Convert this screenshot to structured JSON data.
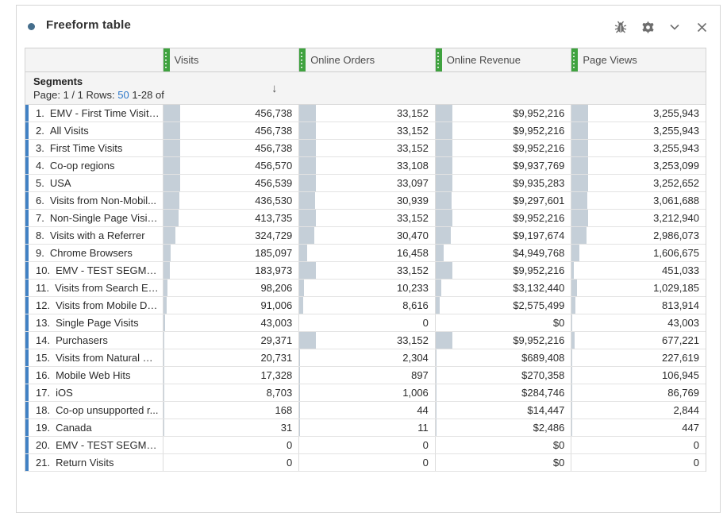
{
  "panel": {
    "title": "Freeform table",
    "toolbar": {
      "bug_icon": "debug-bug",
      "gear_icon": "settings-gear",
      "chevron_icon": "collapse-chevron-down",
      "close_icon": "close-x"
    }
  },
  "table": {
    "columns": [
      "Visits",
      "Online Orders",
      "Online Revenue",
      "Page Views"
    ],
    "row_header": {
      "title": "Segments",
      "page_label": "Page: 1 / 1 Rows:",
      "rows_value": "50",
      "range_label": "1-28 of",
      "sort_arrow": "↓",
      "sorted_column": "Visits",
      "sort_direction": "descending"
    },
    "rows": [
      {
        "index": "1.",
        "label": "EMV - First Time Visits...",
        "visits": "456,738",
        "online_orders": "33,152",
        "online_revenue": "$9,952,216",
        "page_views": "3,255,943"
      },
      {
        "index": "2.",
        "label": "All Visits",
        "visits": "456,738",
        "online_orders": "33,152",
        "online_revenue": "$9,952,216",
        "page_views": "3,255,943"
      },
      {
        "index": "3.",
        "label": "First Time Visits",
        "visits": "456,738",
        "online_orders": "33,152",
        "online_revenue": "$9,952,216",
        "page_views": "3,255,943"
      },
      {
        "index": "4.",
        "label": "Co-op regions",
        "visits": "456,570",
        "online_orders": "33,108",
        "online_revenue": "$9,937,769",
        "page_views": "3,253,099"
      },
      {
        "index": "5.",
        "label": "USA",
        "visits": "456,539",
        "online_orders": "33,097",
        "online_revenue": "$9,935,283",
        "page_views": "3,252,652"
      },
      {
        "index": "6.",
        "label": "Visits from Non-Mobil...",
        "visits": "436,530",
        "online_orders": "30,939",
        "online_revenue": "$9,297,601",
        "page_views": "3,061,688"
      },
      {
        "index": "7.",
        "label": "Non-Single Page Visit (...",
        "visits": "413,735",
        "online_orders": "33,152",
        "online_revenue": "$9,952,216",
        "page_views": "3,212,940"
      },
      {
        "index": "8.",
        "label": "Visits with a Referrer",
        "visits": "324,729",
        "online_orders": "30,470",
        "online_revenue": "$9,197,674",
        "page_views": "2,986,073"
      },
      {
        "index": "9.",
        "label": "Chrome Browsers",
        "visits": "185,097",
        "online_orders": "16,458",
        "online_revenue": "$4,949,768",
        "page_views": "1,606,675"
      },
      {
        "index": "10.",
        "label": "EMV - TEST SEGMEN...",
        "visits": "183,973",
        "online_orders": "33,152",
        "online_revenue": "$9,952,216",
        "page_views": "451,033"
      },
      {
        "index": "11.",
        "label": "Visits from Search En...",
        "visits": "98,206",
        "online_orders": "10,233",
        "online_revenue": "$3,132,440",
        "page_views": "1,029,185"
      },
      {
        "index": "12.",
        "label": "Visits from Mobile De...",
        "visits": "91,006",
        "online_orders": "8,616",
        "online_revenue": "$2,575,499",
        "page_views": "813,914"
      },
      {
        "index": "13.",
        "label": "Single Page Visits",
        "visits": "43,003",
        "online_orders": "0",
        "online_revenue": "$0",
        "page_views": "43,003"
      },
      {
        "index": "14.",
        "label": "Purchasers",
        "visits": "29,371",
        "online_orders": "33,152",
        "online_revenue": "$9,952,216",
        "page_views": "677,221"
      },
      {
        "index": "15.",
        "label": "Visits from Natural Se...",
        "visits": "20,731",
        "online_orders": "2,304",
        "online_revenue": "$689,408",
        "page_views": "227,619"
      },
      {
        "index": "16.",
        "label": "Mobile Web Hits",
        "visits": "17,328",
        "online_orders": "897",
        "online_revenue": "$270,358",
        "page_views": "106,945"
      },
      {
        "index": "17.",
        "label": "iOS",
        "visits": "8,703",
        "online_orders": "1,006",
        "online_revenue": "$284,746",
        "page_views": "86,769"
      },
      {
        "index": "18.",
        "label": "Co-op unsupported r...",
        "visits": "168",
        "online_orders": "44",
        "online_revenue": "$14,447",
        "page_views": "2,844"
      },
      {
        "index": "19.",
        "label": "Canada",
        "visits": "31",
        "online_orders": "11",
        "online_revenue": "$2,486",
        "page_views": "447"
      },
      {
        "index": "20.",
        "label": "EMV - TEST SEGMEN...",
        "visits": "0",
        "online_orders": "0",
        "online_revenue": "$0",
        "page_views": "0"
      },
      {
        "index": "21.",
        "label": "Return Visits",
        "visits": "0",
        "online_orders": "0",
        "online_revenue": "$0",
        "page_views": "0"
      }
    ]
  },
  "colors": {
    "segment_accent_blue": "#4181c4",
    "column_handle_green": "#3fa23f",
    "cell_bar_fill": "#c5cfd8",
    "rows_link_blue": "#2c77c9",
    "panel_dot": "#456e8c",
    "icon_gray": "#6e6e6e"
  }
}
